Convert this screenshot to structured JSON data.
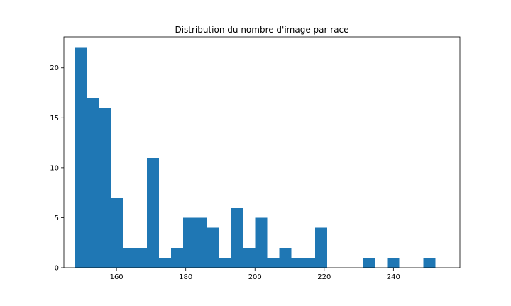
{
  "chart_data": {
    "type": "bar",
    "title": "Distribution du nombre d'image par race",
    "xlabel": "",
    "ylabel": "",
    "bin_start": 148,
    "bin_width": 3.47,
    "values": [
      22,
      17,
      16,
      7,
      2,
      2,
      11,
      1,
      2,
      5,
      5,
      4,
      1,
      6,
      2,
      5,
      1,
      2,
      1,
      1,
      4,
      0,
      0,
      0,
      1,
      0,
      1,
      0,
      0,
      1
    ],
    "xlim": [
      144.8,
      259.2
    ],
    "ylim": [
      0,
      23.1
    ],
    "x_ticks": [
      160,
      180,
      200,
      220,
      240
    ],
    "y_ticks": [
      0,
      5,
      10,
      15,
      20
    ],
    "bar_color": "#1f77b4",
    "grid": false,
    "legend": "none"
  }
}
